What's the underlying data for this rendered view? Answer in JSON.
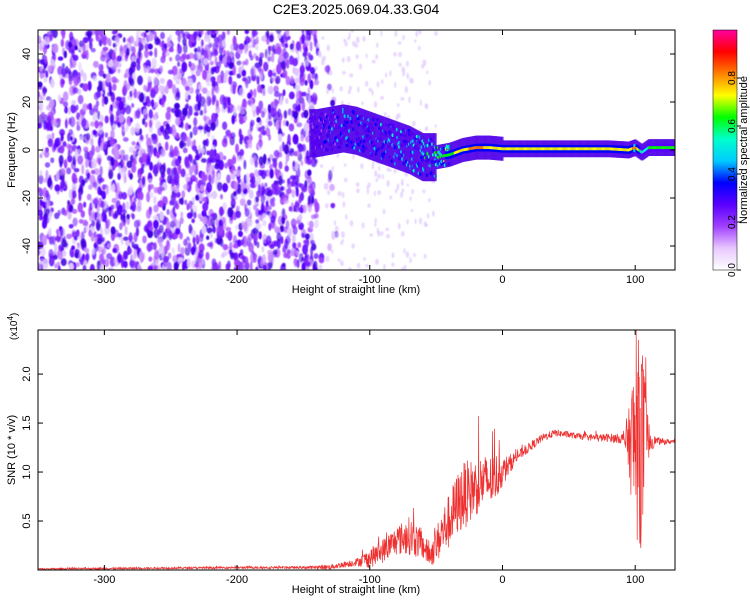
{
  "title": "C2E3.2025.069.04.33.G04",
  "chart_data": [
    {
      "type": "heatmap",
      "xlabel": "Height of straight line (km)",
      "ylabel": "Frequency (Hz)",
      "xlim": [
        -350,
        130
      ],
      "ylim": [
        -50,
        50
      ],
      "xticks": [
        -300,
        -200,
        -100,
        0,
        100
      ],
      "yticks": [
        -40,
        -20,
        0,
        20,
        40
      ],
      "colorbar": {
        "label": "Normalized spectral amplitude",
        "range": [
          0,
          1
        ],
        "ticks": [
          "0.0",
          "0.2",
          "0.4",
          "0.6",
          "0.8"
        ],
        "colormap": [
          "#ffffff",
          "#e8c8ff",
          "#a040ff",
          "#5a00ff",
          "#0000ff",
          "#00ccff",
          "#00ffcc",
          "#00ff00",
          "#ffff00",
          "#ff8000",
          "#ff0000",
          "#ff00a0"
        ]
      },
      "signal_track": {
        "x": [
          -140,
          -130,
          -120,
          -110,
          -100,
          -90,
          -80,
          -70,
          -60,
          -50,
          -40,
          -30,
          -20,
          -10,
          0,
          20,
          40,
          60,
          80,
          95,
          100,
          105,
          110,
          130
        ],
        "center_freq_hz": [
          7,
          8,
          9,
          8,
          6,
          4,
          2,
          0,
          -3,
          -3,
          -2,
          0,
          1,
          1,
          0.5,
          0.5,
          0.5,
          0.5,
          0.5,
          0,
          1,
          -1,
          1,
          1
        ],
        "amplitude": [
          0.3,
          0.4,
          0.45,
          0.45,
          0.45,
          0.5,
          0.45,
          0.5,
          0.55,
          0.6,
          0.65,
          0.75,
          0.8,
          0.75,
          0.75,
          0.75,
          0.75,
          0.75,
          0.75,
          0.7,
          0.85,
          0.5,
          0.6,
          0.6
        ]
      }
    },
    {
      "type": "line",
      "xlabel": "Height of straight line (km)",
      "ylabel": "SNR (10 * v/v)",
      "y_multiplier": "(x10",
      "y_multiplier_exp": "4",
      "y_multiplier_close": ")",
      "xlim": [
        -350,
        130
      ],
      "ylim": [
        0,
        24500
      ],
      "xticks": [
        -300,
        -200,
        -100,
        0,
        100
      ],
      "yticks": [
        0.5,
        1.0,
        1.5,
        2.0
      ],
      "ytick_labels": [
        "0.5",
        "1.0",
        "1.5",
        "2.0"
      ],
      "color": "#ee3030",
      "envelope": {
        "x": [
          -350,
          -300,
          -250,
          -200,
          -150,
          -130,
          -110,
          -100,
          -90,
          -80,
          -70,
          -60,
          -55,
          -50,
          -45,
          -40,
          -35,
          -30,
          -25,
          -20,
          -15,
          -10,
          -5,
          0,
          10,
          20,
          30,
          40,
          50,
          60,
          70,
          80,
          90,
          95,
          100,
          103,
          105,
          108,
          112,
          120,
          130
        ],
        "y": [
          100,
          150,
          200,
          250,
          250,
          300,
          800,
          1200,
          2000,
          3000,
          3500,
          2500,
          1500,
          2500,
          4000,
          5000,
          6500,
          7500,
          8000,
          8500,
          9000,
          9000,
          9500,
          10000,
          11500,
          12500,
          13500,
          14000,
          13800,
          13600,
          13500,
          13500,
          13400,
          13200,
          13000,
          13200,
          13000,
          13200,
          13300,
          13100,
          13100
        ]
      },
      "noise_amplitude": {
        "x": [
          -350,
          -150,
          -110,
          -100,
          -80,
          -70,
          -55,
          -45,
          -30,
          -20,
          -5,
          0,
          10,
          30,
          60,
          90,
          95,
          100,
          105,
          110,
          115,
          130
        ],
        "y": [
          80,
          120,
          400,
          1000,
          1500,
          2000,
          1200,
          2500,
          3500,
          3000,
          2500,
          1500,
          600,
          400,
          300,
          500,
          3000,
          10000,
          11000,
          2000,
          400,
          200
        ]
      }
    }
  ]
}
